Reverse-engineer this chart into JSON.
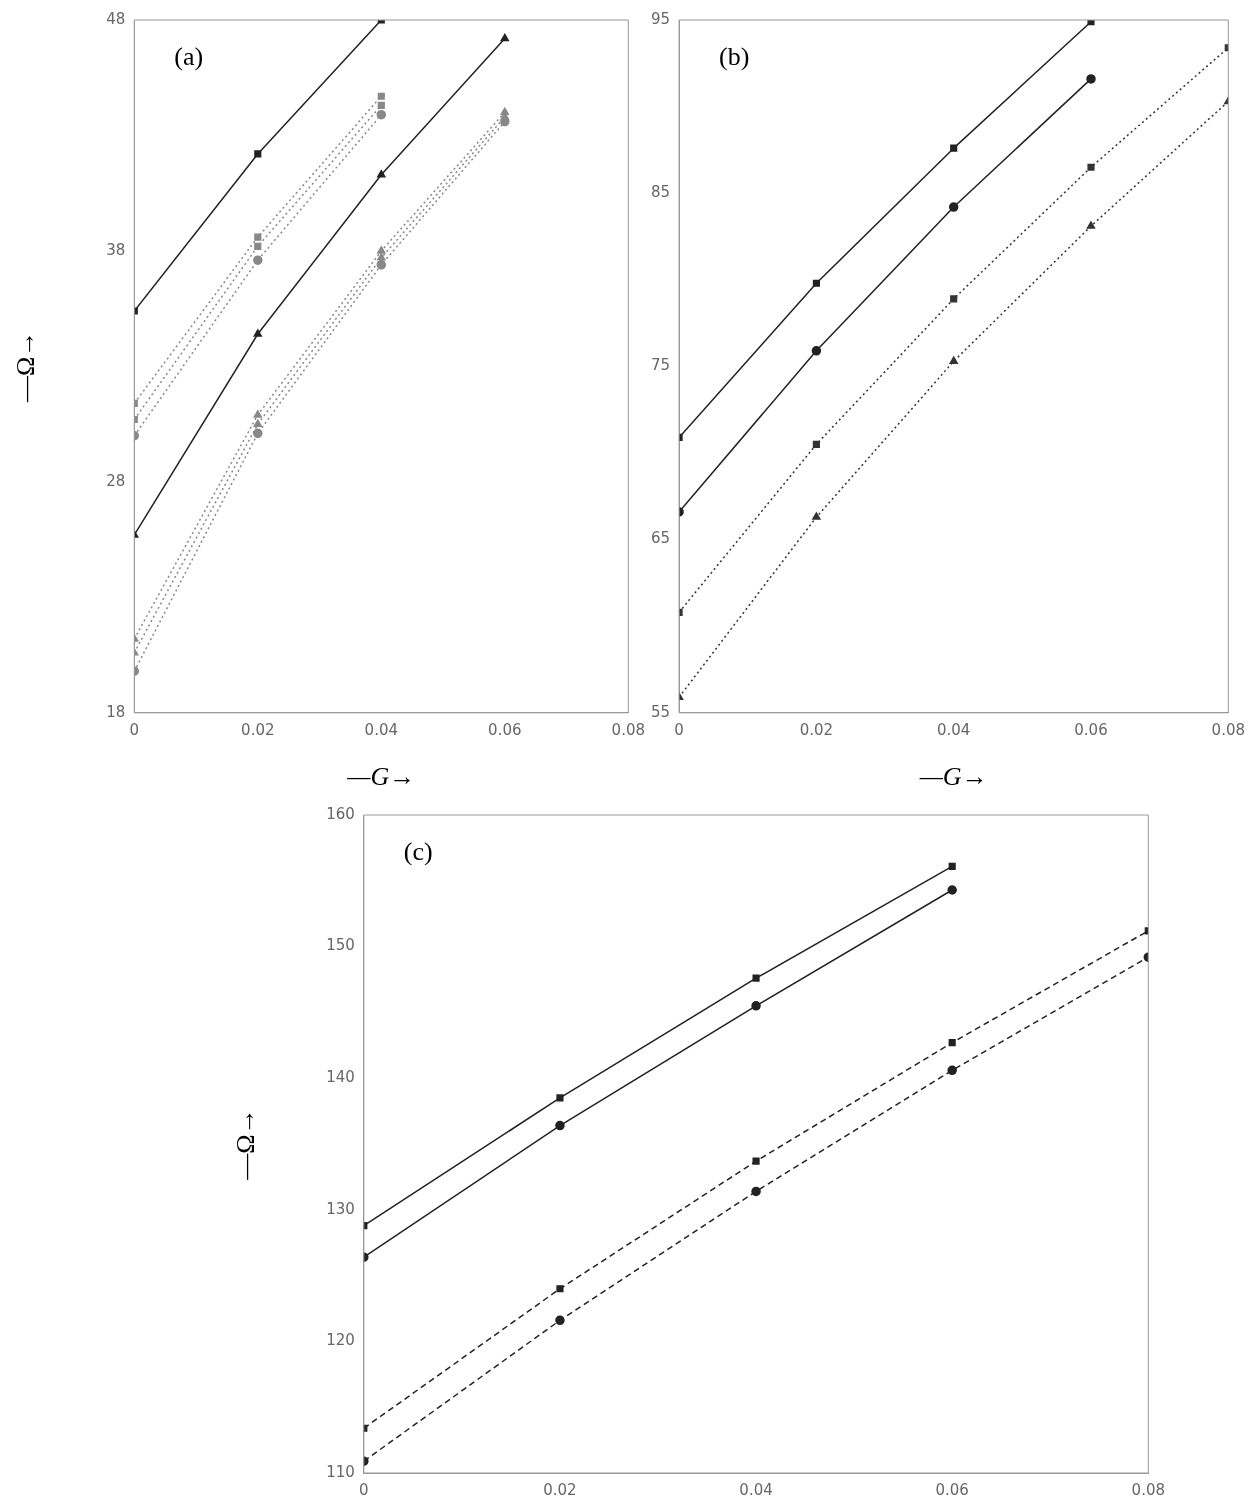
{
  "chart_data": [
    {
      "type": "line",
      "xlabel": "—G→",
      "ylabel": "—Ω→",
      "annotations": [
        "(a)"
      ],
      "x": [
        0,
        0.02,
        0.04,
        0.06
      ],
      "xlim": [
        0,
        0.08
      ],
      "xticks": [
        0,
        0.02,
        0.04,
        0.06,
        0.08
      ],
      "ylim": [
        18,
        48
      ],
      "yticks": [
        18,
        28,
        38,
        48
      ],
      "grid": false,
      "legend": false,
      "series": [
        {
          "color": "#222222",
          "marker": "square",
          "line_style": "solid",
          "values": [
            35.4,
            42.2,
            48.0,
            null
          ]
        },
        {
          "color": "#222222",
          "marker": "triangle",
          "line_style": "solid",
          "values": [
            25.7,
            34.4,
            41.3,
            47.2
          ]
        },
        {
          "color": "#888888",
          "marker": "square",
          "line_style": "dotted",
          "values": [
            31.4,
            38.6,
            44.7,
            null
          ]
        },
        {
          "color": "#888888",
          "marker": "square",
          "line_style": "dotted",
          "values": [
            30.7,
            38.2,
            44.3,
            null
          ]
        },
        {
          "color": "#888888",
          "marker": "circle",
          "line_style": "dotted",
          "values": [
            30.0,
            37.6,
            43.9,
            null
          ]
        },
        {
          "color": "#888888",
          "marker": "triangle",
          "line_style": "dotted",
          "values": [
            21.2,
            30.9,
            38.0,
            44.0
          ]
        },
        {
          "color": "#888888",
          "marker": "triangle",
          "line_style": "dotted",
          "values": [
            20.6,
            30.5,
            37.7,
            43.8
          ]
        },
        {
          "color": "#888888",
          "marker": "circle",
          "line_style": "dotted",
          "values": [
            19.8,
            30.1,
            37.4,
            43.6
          ]
        }
      ]
    },
    {
      "type": "line",
      "xlabel": "—G→",
      "annotations": [
        "(b)"
      ],
      "x": [
        0,
        0.02,
        0.04,
        0.06,
        0.08
      ],
      "xlim": [
        0,
        0.08
      ],
      "xticks": [
        0,
        0.02,
        0.04,
        0.06,
        0.08
      ],
      "ylim": [
        55,
        95
      ],
      "yticks": [
        55,
        65,
        75,
        85,
        95
      ],
      "grid": false,
      "legend": false,
      "series": [
        {
          "color": "#222222",
          "marker": "square",
          "line_style": "solid",
          "values": [
            70.9,
            79.8,
            87.6,
            94.9,
            null
          ]
        },
        {
          "color": "#222222",
          "marker": "circle",
          "line_style": "solid",
          "values": [
            66.6,
            75.9,
            84.2,
            91.6,
            null
          ]
        },
        {
          "color": "#333333",
          "marker": "square",
          "line_style": "dotted",
          "values": [
            60.8,
            70.5,
            78.9,
            86.5,
            93.4
          ]
        },
        {
          "color": "#333333",
          "marker": "triangle",
          "line_style": "dotted",
          "values": [
            55.9,
            66.3,
            75.3,
            83.1,
            90.3
          ]
        }
      ]
    },
    {
      "type": "line",
      "ylabel": "—Ω→",
      "annotations": [
        "(c)"
      ],
      "x": [
        0,
        0.02,
        0.04,
        0.06,
        0.08
      ],
      "xlim": [
        0,
        0.08
      ],
      "xticks": [
        0,
        0.02,
        0.04,
        0.06,
        0.08
      ],
      "ylim": [
        110,
        160
      ],
      "yticks": [
        110,
        120,
        130,
        140,
        150,
        160
      ],
      "grid": false,
      "legend": false,
      "series": [
        {
          "color": "#222222",
          "marker": "square",
          "line_style": "solid",
          "values": [
            128.8,
            138.5,
            147.6,
            156.1,
            null
          ]
        },
        {
          "color": "#222222",
          "marker": "circle",
          "line_style": "solid",
          "values": [
            126.4,
            136.4,
            145.5,
            154.3,
            null
          ]
        },
        {
          "color": "#222222",
          "marker": "square",
          "line_style": "dashed",
          "values": [
            113.4,
            124.0,
            133.7,
            142.7,
            151.2
          ]
        },
        {
          "color": "#222222",
          "marker": "circle",
          "line_style": "dashed",
          "values": [
            110.9,
            121.6,
            131.4,
            140.6,
            149.2
          ]
        }
      ]
    }
  ]
}
